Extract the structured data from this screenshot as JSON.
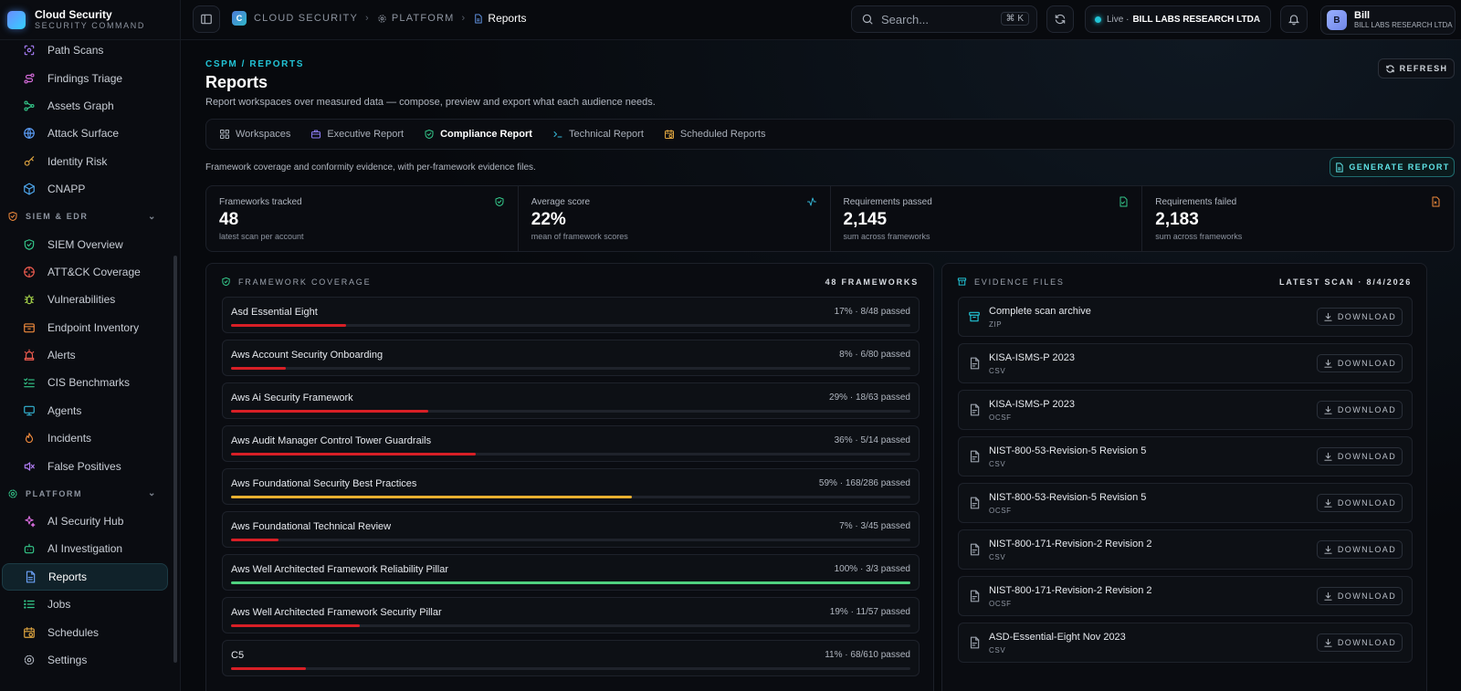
{
  "brand": {
    "title": "Cloud Security",
    "subtitle": "SECURITY COMMAND"
  },
  "sidebar": {
    "group1": [
      {
        "label": "Path Scans",
        "icon": "scan-icon",
        "color": "#a57cf5"
      },
      {
        "label": "Findings Triage",
        "icon": "route-icon",
        "color": "#d46bd9"
      },
      {
        "label": "Assets Graph",
        "icon": "graph-icon",
        "color": "#34c78a"
      },
      {
        "label": "Attack Surface",
        "icon": "globe-icon",
        "color": "#5b9cf5"
      },
      {
        "label": "Identity Risk",
        "icon": "key-icon",
        "color": "#e0a640"
      },
      {
        "label": "CNAPP",
        "icon": "cube-icon",
        "color": "#4fa9f0"
      }
    ],
    "section_siem": "SIEM & EDR",
    "group2": [
      {
        "label": "SIEM Overview",
        "icon": "shield-check-icon",
        "color": "#34c78a"
      },
      {
        "label": "ATT&CK Coverage",
        "icon": "crosshair-icon",
        "color": "#ef5b4f"
      },
      {
        "label": "Vulnerabilities",
        "icon": "bug-icon",
        "color": "#a8d64a"
      },
      {
        "label": "Endpoint Inventory",
        "icon": "box-icon",
        "color": "#f08a3c"
      },
      {
        "label": "Alerts",
        "icon": "siren-icon",
        "color": "#ef5b4f"
      },
      {
        "label": "CIS Benchmarks",
        "icon": "list-check-icon",
        "color": "#34c78a"
      },
      {
        "label": "Agents",
        "icon": "monitor-icon",
        "color": "#34b6d6"
      },
      {
        "label": "Incidents",
        "icon": "flame-icon",
        "color": "#f08a3c"
      },
      {
        "label": "False Positives",
        "icon": "volume-x-icon",
        "color": "#b07cf5"
      }
    ],
    "section_platform": "PLATFORM",
    "group3": [
      {
        "label": "AI Security Hub",
        "icon": "sparkles-icon",
        "color": "#d46bd9"
      },
      {
        "label": "AI Investigation",
        "icon": "bot-icon",
        "color": "#34c78a"
      },
      {
        "label": "Reports",
        "icon": "file-text-icon",
        "color": "#6aa0f5",
        "active": true
      },
      {
        "label": "Jobs",
        "icon": "list-icon",
        "color": "#34c78a"
      },
      {
        "label": "Schedules",
        "icon": "calendar-clock-icon",
        "color": "#e0a640"
      },
      {
        "label": "Settings",
        "icon": "gear-icon",
        "color": "#aab0ba"
      }
    ]
  },
  "topbar": {
    "breadcrumb": {
      "logo_letter": "C",
      "root": "CLOUD SECURITY",
      "section": "PLATFORM",
      "current": "Reports"
    },
    "search": {
      "placeholder": "Search...",
      "shortcut": "⌘ K"
    },
    "live": {
      "label": "Live ·",
      "org": "BILL LABS RESEARCH LTDA"
    },
    "user": {
      "initial": "B",
      "name": "Bill",
      "org": "BILL LABS RESEARCH LTDA"
    }
  },
  "page": {
    "eyebrow": "CSPM / REPORTS",
    "title": "Reports",
    "description": "Report workspaces over measured data — compose, preview and export what each audience needs.",
    "refresh_label": "REFRESH",
    "tabs": [
      {
        "label": "Workspaces",
        "icon": "grid-icon",
        "color": "#aab0ba"
      },
      {
        "label": "Executive Report",
        "icon": "briefcase-icon",
        "color": "#8c7cf5"
      },
      {
        "label": "Compliance Report",
        "icon": "shield-check-icon",
        "color": "#34c78a",
        "active": true
      },
      {
        "label": "Technical Report",
        "icon": "terminal-icon",
        "color": "#34b6d6"
      },
      {
        "label": "Scheduled Reports",
        "icon": "calendar-clock-icon",
        "color": "#e0a640"
      }
    ],
    "tab_description": "Framework coverage and conformity evidence, with per-framework evidence files.",
    "generate_label": "GENERATE REPORT"
  },
  "kpis": [
    {
      "label": "Frameworks tracked",
      "value": "48",
      "sub": "latest scan per account",
      "icon": "shield-check-icon",
      "color": "#34c78a"
    },
    {
      "label": "Average score",
      "value": "22%",
      "sub": "mean of framework scores",
      "icon": "activity-icon",
      "color": "#34b6d6"
    },
    {
      "label": "Requirements passed",
      "value": "2,145",
      "sub": "sum across frameworks",
      "icon": "file-check-icon",
      "color": "#34c78a"
    },
    {
      "label": "Requirements failed",
      "value": "2,183",
      "sub": "sum across frameworks",
      "icon": "file-x-icon",
      "color": "#f08a3c"
    }
  ],
  "coverage": {
    "title": "FRAMEWORK COVERAGE",
    "count_label": "48 FRAMEWORKS",
    "rows": [
      {
        "name": "Asd Essential Eight",
        "stat": "17% · 8/48 passed",
        "score": 0.17
      },
      {
        "name": "Aws Account Security Onboarding",
        "stat": "8% · 6/80 passed",
        "score": 0.08
      },
      {
        "name": "Aws Ai Security Framework",
        "stat": "29% · 18/63 passed",
        "score": 0.29
      },
      {
        "name": "Aws Audit Manager Control Tower Guardrails",
        "stat": "36% · 5/14 passed",
        "score": 0.36
      },
      {
        "name": "Aws Foundational Security Best Practices",
        "stat": "59% · 168/286 passed",
        "score": 0.59
      },
      {
        "name": "Aws Foundational Technical Review",
        "stat": "7% · 3/45 passed",
        "score": 0.07
      },
      {
        "name": "Aws Well Architected Framework Reliability Pillar",
        "stat": "100% · 3/3 passed",
        "score": 1.0
      },
      {
        "name": "Aws Well Architected Framework Security Pillar",
        "stat": "19% · 11/57 passed",
        "score": 0.19
      },
      {
        "name": "C5",
        "stat": "11% · 68/610 passed",
        "score": 0.11
      }
    ]
  },
  "evidence": {
    "title": "EVIDENCE FILES",
    "scan_label": "LATEST SCAN · 8/4/2026",
    "download_label": "DOWNLOAD",
    "rows": [
      {
        "name": "Complete scan archive",
        "type": "ZIP",
        "icon": "archive-icon"
      },
      {
        "name": "KISA-ISMS-P 2023",
        "type": "CSV",
        "icon": "file-icon"
      },
      {
        "name": "KISA-ISMS-P 2023",
        "type": "OCSF",
        "icon": "file-icon"
      },
      {
        "name": "NIST-800-53-Revision-5 Revision 5",
        "type": "CSV",
        "icon": "file-icon"
      },
      {
        "name": "NIST-800-53-Revision-5 Revision 5",
        "type": "OCSF",
        "icon": "file-icon"
      },
      {
        "name": "NIST-800-171-Revision-2 Revision 2",
        "type": "CSV",
        "icon": "file-icon"
      },
      {
        "name": "NIST-800-171-Revision-2 Revision 2",
        "type": "OCSF",
        "icon": "file-icon"
      },
      {
        "name": "ASD-Essential-Eight Nov 2023",
        "type": "CSV",
        "icon": "file-icon"
      }
    ]
  },
  "colors": {
    "accent": "#22c4d6",
    "low": "#d81f26",
    "mid": "#e8b030",
    "high": "#4fd17f"
  }
}
